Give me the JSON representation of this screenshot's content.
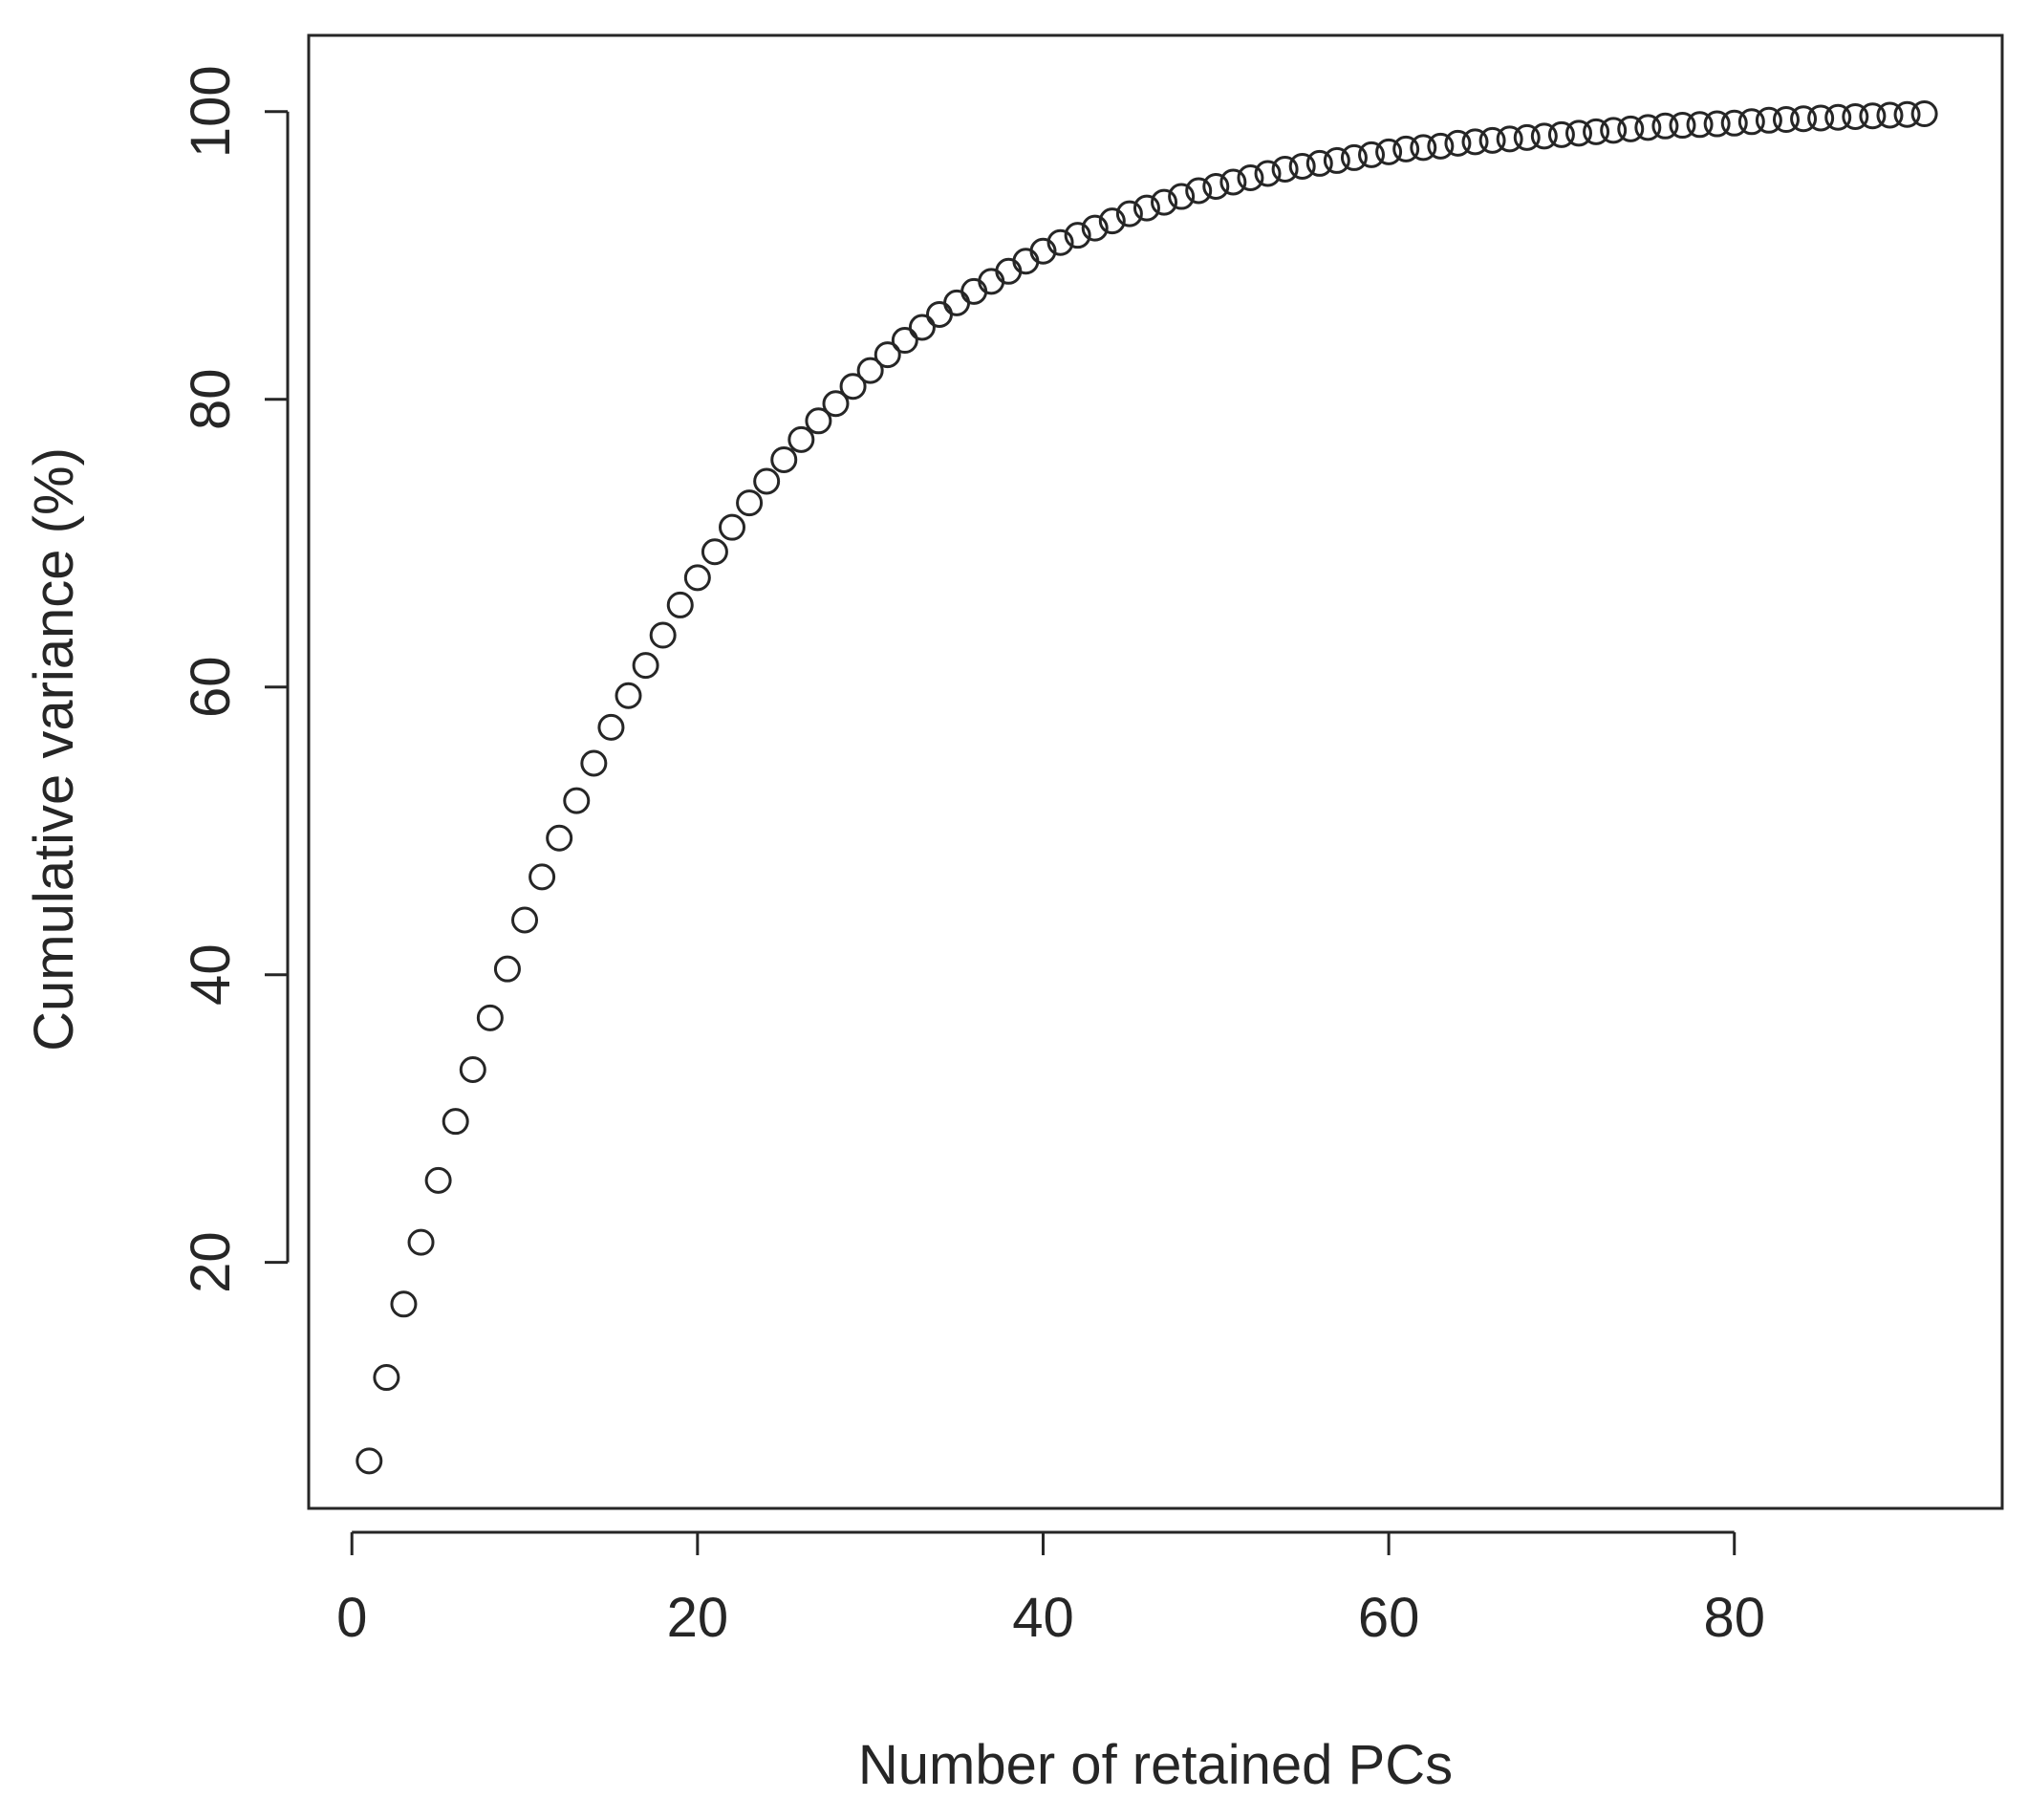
{
  "chart_data": {
    "type": "scatter",
    "title": "",
    "xlabel": "Number of retained PCs",
    "ylabel": "Cumulative variance (%)",
    "xlim": [
      -2.5,
      95.5
    ],
    "ylim": [
      2.9,
      105.3
    ],
    "xticks": [
      0,
      20,
      40,
      60,
      80
    ],
    "yticks": [
      20,
      40,
      60,
      80,
      100
    ],
    "xtick_labels": [
      "0",
      "20",
      "40",
      "60",
      "80"
    ],
    "ytick_labels": [
      "20",
      "40",
      "60",
      "80",
      "100"
    ],
    "grid": false,
    "point_marker": "open-circle",
    "point_color": "#262626",
    "x": [
      1,
      2,
      3,
      4,
      5,
      6,
      7,
      8,
      9,
      10,
      11,
      12,
      13,
      14,
      15,
      16,
      17,
      18,
      19,
      20,
      21,
      22,
      23,
      24,
      25,
      26,
      27,
      28,
      29,
      30,
      31,
      32,
      33,
      34,
      35,
      36,
      37,
      38,
      39,
      40,
      41,
      42,
      43,
      44,
      45,
      46,
      47,
      48,
      49,
      50,
      51,
      52,
      53,
      54,
      55,
      56,
      57,
      58,
      59,
      60,
      61,
      62,
      63,
      64,
      65,
      66,
      67,
      68,
      69,
      70,
      71,
      72,
      73,
      74,
      75,
      76,
      77,
      78,
      79,
      80,
      81,
      82,
      83,
      84,
      85,
      86,
      87,
      88,
      89,
      90,
      91
    ],
    "y": [
      6.2,
      12.0,
      17.1,
      21.4,
      25.7,
      29.8,
      33.4,
      37.0,
      40.4,
      43.8,
      46.8,
      49.5,
      52.1,
      54.7,
      57.2,
      59.4,
      61.5,
      63.6,
      65.7,
      67.6,
      69.4,
      71.1,
      72.8,
      74.3,
      75.8,
      77.2,
      78.5,
      79.7,
      80.9,
      82.0,
      83.1,
      84.1,
      85.0,
      85.9,
      86.7,
      87.5,
      88.2,
      88.9,
      89.6,
      90.3,
      90.9,
      91.4,
      91.9,
      92.4,
      92.9,
      93.3,
      93.7,
      94.1,
      94.5,
      94.8,
      95.1,
      95.4,
      95.7,
      96.0,
      96.2,
      96.4,
      96.6,
      96.8,
      97.0,
      97.2,
      97.4,
      97.5,
      97.6,
      97.8,
      97.9,
      98.0,
      98.1,
      98.2,
      98.3,
      98.4,
      98.5,
      98.6,
      98.7,
      98.8,
      98.9,
      99.0,
      99.05,
      99.1,
      99.15,
      99.2,
      99.3,
      99.4,
      99.45,
      99.5,
      99.55,
      99.6,
      99.65,
      99.7,
      99.75,
      99.8,
      99.85
    ]
  }
}
